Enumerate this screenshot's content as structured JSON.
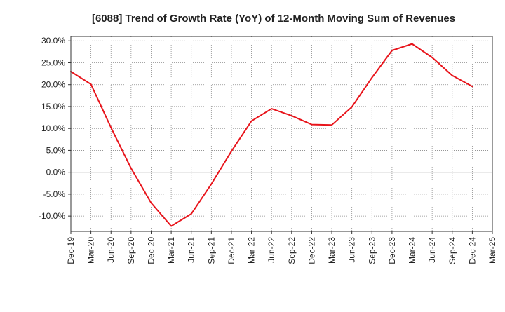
{
  "chart_data": {
    "type": "line",
    "title": "[6088]  Trend of Growth Rate (YoY) of 12-Month Moving Sum of Revenues",
    "xlabel": "",
    "ylabel": "",
    "x": [
      "Dec-19",
      "Mar-20",
      "Jun-20",
      "Sep-20",
      "Dec-20",
      "Mar-21",
      "Jun-21",
      "Sep-21",
      "Dec-21",
      "Mar-22",
      "Jun-22",
      "Sep-22",
      "Dec-22",
      "Mar-23",
      "Jun-23",
      "Sep-23",
      "Dec-23",
      "Mar-24",
      "Jun-24",
      "Sep-24",
      "Dec-24",
      "Mar-25"
    ],
    "series": [
      {
        "values": [
          23.0,
          20.1,
          10.2,
          0.9,
          -7.0,
          -12.3,
          -9.5,
          -2.7,
          4.8,
          11.7,
          14.5,
          12.9,
          10.9,
          10.8,
          14.9,
          21.6,
          27.8,
          29.3,
          26.2,
          22.1,
          19.6,
          null
        ]
      }
    ],
    "ylim": [
      -13.5,
      31.0
    ],
    "yticks": [
      -10,
      -5,
      0,
      5,
      10,
      15,
      20,
      25,
      30
    ],
    "ytick_labels": [
      "-10.0%",
      "-5.0%",
      "0.0%",
      "5.0%",
      "10.0%",
      "15.0%",
      "20.0%",
      "25.0%",
      "30.0%"
    ],
    "grid": true,
    "line_color": "#e8141b",
    "grid_color": "#888888",
    "zero_line_color": "#555555"
  }
}
